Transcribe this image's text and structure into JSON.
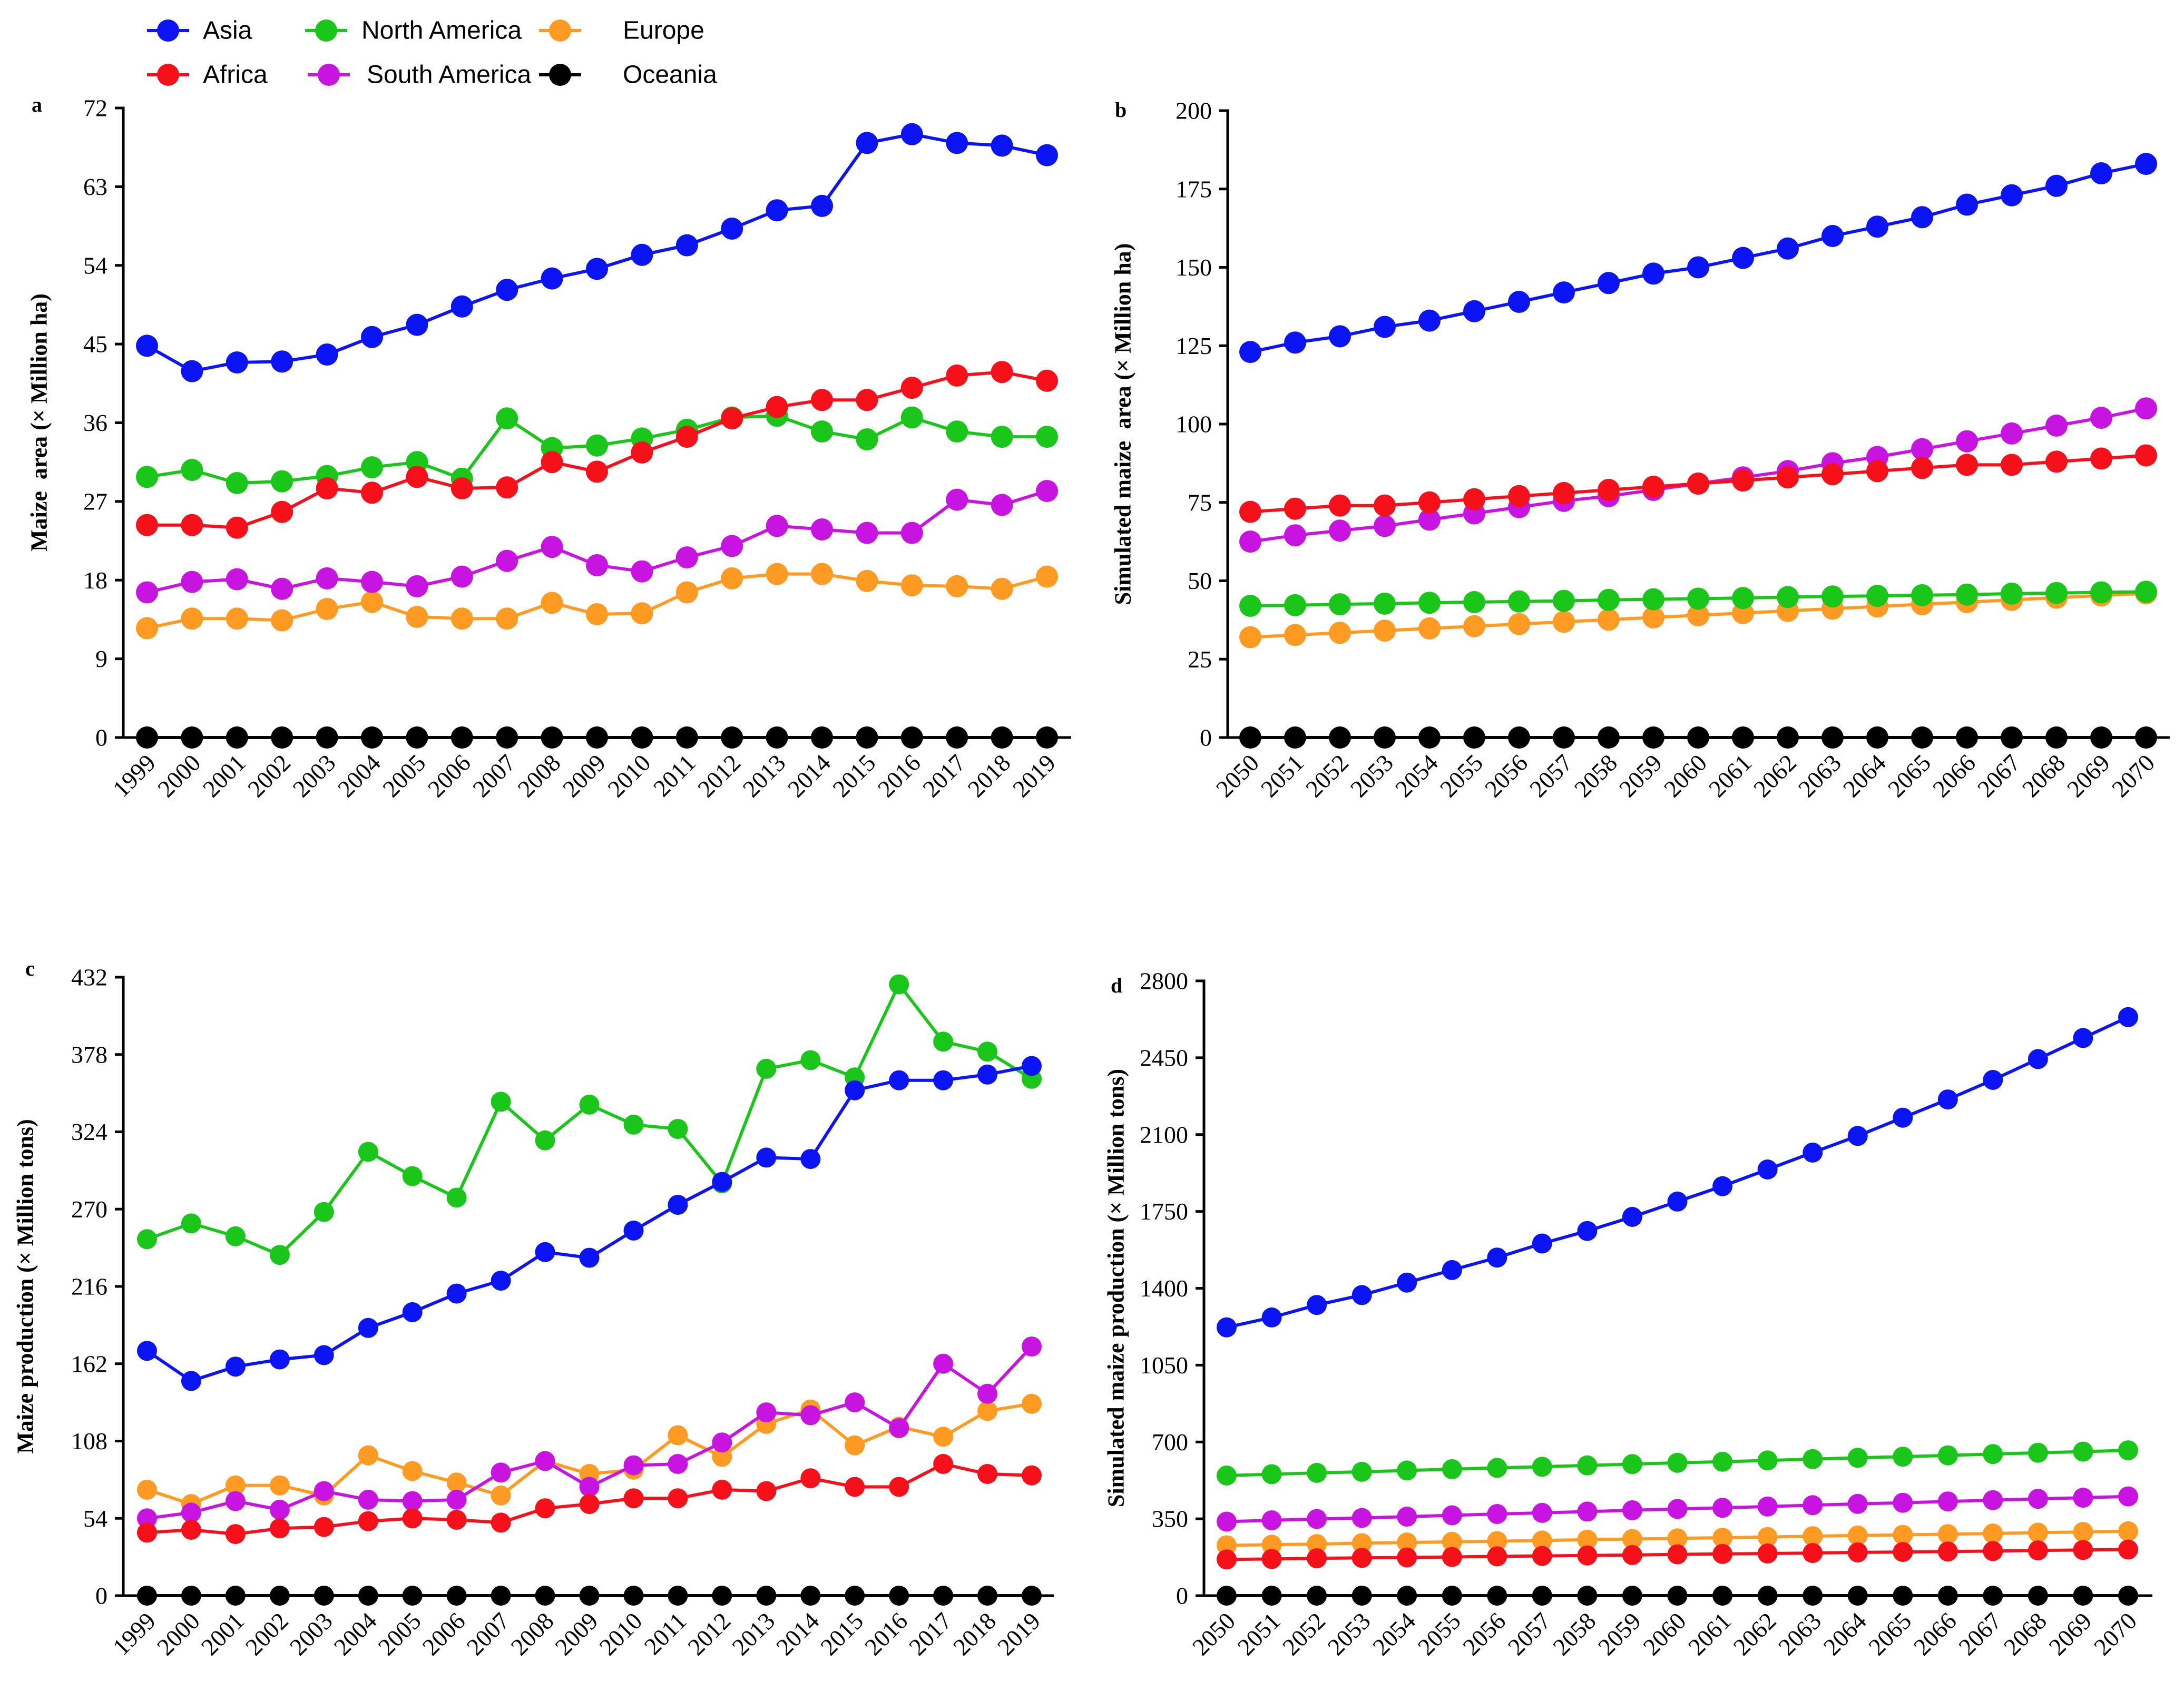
{
  "legend": {
    "entries": [
      {
        "name": "Asia",
        "color": "#0a14f5"
      },
      {
        "name": "Africa",
        "color": "#f5101a"
      },
      {
        "name": "North America",
        "color": "#19c619"
      },
      {
        "name": "South America",
        "color": "#c814e0"
      },
      {
        "name": "Europe",
        "color": "#ff9a22"
      },
      {
        "name": "Oceania",
        "color": "#000000"
      }
    ]
  },
  "chart_data": [
    {
      "label": "a",
      "type": "line",
      "ylabel": "Maize  area (× Million ha)",
      "categories": [
        "1999",
        "2000",
        "2001",
        "2002",
        "2003",
        "2004",
        "2005",
        "2006",
        "2007",
        "2008",
        "2009",
        "2010",
        "2011",
        "2012",
        "2013",
        "2014",
        "2015",
        "2016",
        "2017",
        "2018",
        "2019"
      ],
      "ylim": [
        0,
        72
      ],
      "yticks": [
        0,
        9,
        18,
        27,
        36,
        45,
        54,
        63,
        72
      ],
      "series": [
        {
          "name": "Asia",
          "values": [
            44.8,
            41.9,
            42.9,
            43.0,
            43.8,
            45.8,
            47.2,
            49.3,
            51.2,
            52.5,
            53.6,
            55.2,
            56.3,
            58.2,
            60.3,
            60.8,
            68.0,
            69.0,
            68.0,
            67.7,
            66.6
          ]
        },
        {
          "name": "Africa",
          "values": [
            24.3,
            24.3,
            24.0,
            25.8,
            28.5,
            28.0,
            29.8,
            28.5,
            28.6,
            31.5,
            30.4,
            32.6,
            34.4,
            36.5,
            37.8,
            38.6,
            38.6,
            40.0,
            41.4,
            41.8,
            40.8
          ]
        },
        {
          "name": "North America",
          "values": [
            29.8,
            30.6,
            29.1,
            29.3,
            29.9,
            30.9,
            31.5,
            29.6,
            36.5,
            33.1,
            33.4,
            34.2,
            35.2,
            36.6,
            36.8,
            35.0,
            34.1,
            36.6,
            35.0,
            34.4,
            34.4
          ]
        },
        {
          "name": "South America",
          "values": [
            16.6,
            17.8,
            18.1,
            17.0,
            18.2,
            17.8,
            17.3,
            18.4,
            20.2,
            21.8,
            19.7,
            19.0,
            20.6,
            21.9,
            24.2,
            23.8,
            23.4,
            23.4,
            27.2,
            26.6,
            28.2
          ]
        },
        {
          "name": "Europe",
          "values": [
            12.5,
            13.6,
            13.6,
            13.4,
            14.7,
            15.5,
            13.8,
            13.6,
            13.6,
            15.4,
            14.1,
            14.2,
            16.6,
            18.2,
            18.7,
            18.7,
            17.9,
            17.4,
            17.3,
            17.0,
            18.4
          ]
        },
        {
          "name": "Oceania",
          "values": [
            0,
            0,
            0,
            0,
            0,
            0,
            0,
            0,
            0,
            0,
            0,
            0,
            0,
            0,
            0,
            0,
            0,
            0,
            0,
            0,
            0
          ]
        }
      ]
    },
    {
      "label": "b",
      "type": "line",
      "ylabel": "Simulated maize  area (× Million ha)",
      "categories": [
        "2050",
        "2051",
        "2052",
        "2053",
        "2054",
        "2055",
        "2056",
        "2057",
        "2058",
        "2059",
        "2060",
        "2061",
        "2062",
        "2063",
        "2064",
        "2065",
        "2066",
        "2067",
        "2068",
        "2069",
        "2070"
      ],
      "ylim": [
        0,
        200
      ],
      "yticks": [
        0,
        25,
        50,
        75,
        100,
        125,
        150,
        175,
        200
      ],
      "series": [
        {
          "name": "Asia",
          "values": [
            123,
            126,
            128,
            131,
            133,
            136,
            139,
            142,
            145,
            148,
            150,
            153,
            156,
            160,
            163,
            166,
            170,
            173,
            176,
            180,
            183
          ]
        },
        {
          "name": "Africa",
          "values": [
            72,
            73,
            74,
            74,
            75,
            76,
            77,
            78,
            79,
            80,
            81,
            82,
            83,
            84,
            85,
            86,
            87,
            87,
            88,
            89,
            90
          ]
        },
        {
          "name": "North America",
          "values": [
            42.0,
            42.2,
            42.5,
            42.7,
            43.0,
            43.2,
            43.4,
            43.6,
            43.9,
            44.1,
            44.3,
            44.5,
            44.8,
            45.0,
            45.2,
            45.4,
            45.6,
            45.9,
            46.1,
            46.3,
            46.5
          ]
        },
        {
          "name": "South America",
          "values": [
            62.5,
            64.5,
            66.0,
            67.5,
            69.5,
            71.5,
            73.5,
            75.5,
            77.0,
            79.0,
            81.0,
            83.0,
            85.0,
            87.5,
            89.5,
            92.0,
            94.5,
            97.0,
            99.5,
            102.0,
            105.0
          ]
        },
        {
          "name": "Europe",
          "values": [
            32.0,
            32.7,
            33.4,
            34.1,
            34.8,
            35.5,
            36.2,
            36.9,
            37.6,
            38.3,
            39.0,
            39.7,
            40.4,
            41.1,
            41.8,
            42.5,
            43.2,
            43.9,
            44.6,
            45.3,
            46.0
          ]
        },
        {
          "name": "Oceania",
          "values": [
            0,
            0,
            0,
            0,
            0,
            0,
            0,
            0,
            0,
            0,
            0,
            0,
            0,
            0,
            0,
            0,
            0,
            0,
            0,
            0,
            0
          ]
        }
      ]
    },
    {
      "label": "c",
      "type": "line",
      "ylabel": "Maize production (× Million tons)",
      "categories": [
        "1999",
        "2000",
        "2001",
        "2002",
        "2003",
        "2004",
        "2005",
        "2006",
        "2007",
        "2008",
        "2009",
        "2010",
        "2011",
        "2012",
        "2013",
        "2014",
        "2015",
        "2016",
        "2017",
        "2018",
        "2019"
      ],
      "ylim": [
        0,
        432
      ],
      "yticks": [
        0,
        54,
        108,
        162,
        216,
        270,
        324,
        378,
        432
      ],
      "series": [
        {
          "name": "Asia",
          "values": [
            171,
            150,
            160,
            165,
            168,
            187,
            198,
            211,
            220,
            240,
            236,
            255,
            273,
            289,
            306,
            305,
            353,
            360,
            360,
            364,
            370
          ]
        },
        {
          "name": "Africa",
          "values": [
            44,
            46,
            43,
            47,
            48,
            52,
            54,
            53,
            51,
            61,
            64,
            68,
            68,
            74,
            73,
            82,
            76,
            76,
            92,
            85,
            84
          ]
        },
        {
          "name": "North America",
          "values": [
            249,
            260,
            251,
            238,
            268,
            310,
            293,
            278,
            345,
            318,
            343,
            329,
            326,
            288,
            368,
            374,
            362,
            427,
            387,
            380,
            361
          ]
        },
        {
          "name": "South America",
          "values": [
            54,
            58,
            66,
            60,
            73,
            67,
            66,
            67,
            86,
            94,
            76,
            91,
            92,
            107,
            128,
            126,
            135,
            117,
            162,
            141,
            174
          ]
        },
        {
          "name": "Europe",
          "values": [
            74,
            64,
            77,
            77,
            70,
            98,
            87,
            79,
            70,
            94,
            85,
            88,
            112,
            97,
            120,
            130,
            105,
            118,
            111,
            129,
            134
          ]
        },
        {
          "name": "Oceania",
          "values": [
            0,
            0,
            0,
            0,
            0,
            0,
            0,
            0,
            0,
            0,
            0,
            0,
            0,
            0,
            0,
            0,
            0,
            0,
            0,
            0,
            0
          ]
        }
      ]
    },
    {
      "label": "d",
      "type": "line",
      "ylabel": "Simulated maize production (× Million tons)",
      "categories": [
        "2050",
        "2051",
        "2052",
        "2053",
        "2054",
        "2055",
        "2056",
        "2057",
        "2058",
        "2059",
        "2060",
        "2061",
        "2062",
        "2063",
        "2064",
        "2065",
        "2066",
        "2067",
        "2068",
        "2069",
        "2070"
      ],
      "ylim": [
        0,
        2800
      ],
      "yticks": [
        0,
        350,
        700,
        1050,
        1400,
        1750,
        2100,
        2450,
        2800
      ],
      "series": [
        {
          "name": "Asia",
          "values": [
            1222,
            1267,
            1324,
            1369,
            1426,
            1483,
            1540,
            1604,
            1661,
            1725,
            1795,
            1865,
            1941,
            2018,
            2094,
            2177,
            2260,
            2349,
            2444,
            2540,
            2635
          ]
        },
        {
          "name": "Africa",
          "values": [
            165,
            167,
            170,
            172,
            174,
            176,
            179,
            181,
            183,
            185,
            188,
            190,
            192,
            194,
            197,
            199,
            201,
            203,
            206,
            208,
            210
          ]
        },
        {
          "name": "North America",
          "values": [
            547,
            553,
            559,
            564,
            570,
            576,
            582,
            587,
            593,
            599,
            605,
            610,
            616,
            622,
            628,
            633,
            639,
            645,
            651,
            656,
            662
          ]
        },
        {
          "name": "South America",
          "values": [
            337,
            343,
            349,
            354,
            360,
            366,
            372,
            377,
            383,
            389,
            395,
            400,
            406,
            412,
            418,
            423,
            429,
            435,
            441,
            446,
            452
          ]
        },
        {
          "name": "Europe",
          "values": [
            229,
            232,
            235,
            239,
            242,
            245,
            248,
            251,
            255,
            258,
            261,
            264,
            267,
            271,
            274,
            277,
            280,
            283,
            287,
            290,
            293
          ]
        },
        {
          "name": "Oceania",
          "values": [
            0,
            0,
            0,
            0,
            0,
            0,
            0,
            0,
            0,
            0,
            0,
            0,
            0,
            0,
            0,
            0,
            0,
            0,
            0,
            0,
            0
          ]
        }
      ]
    }
  ]
}
